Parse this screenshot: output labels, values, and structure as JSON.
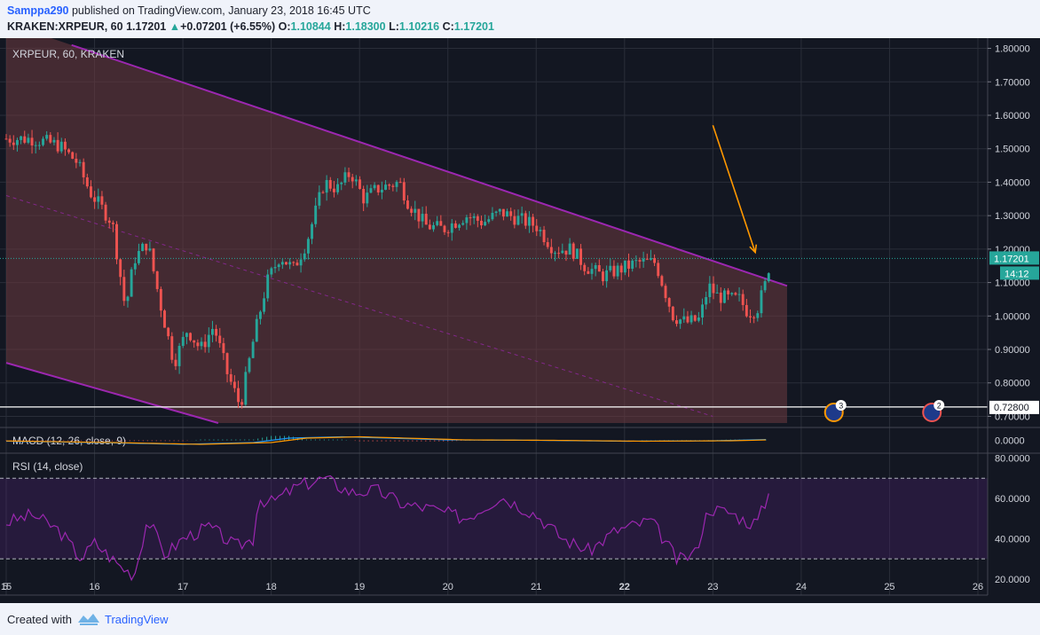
{
  "header": {
    "author": "Samppa290",
    "published_text": " published on TradingView.com, January 23, 2018 16:45 UTC",
    "symbol": "KRAKEN:XRPEUR, 60",
    "last_price": "1.17201",
    "change_arrow": "▲",
    "change": "+0.07201 (+6.55%)",
    "open_label": "O:",
    "open": "1.10844",
    "high_label": "H:",
    "high": "1.18300",
    "low_label": "L:",
    "low": "1.10216",
    "close_label": "C:",
    "close": "1.17201"
  },
  "footer": {
    "created_with": "Created with",
    "brand": "TradingView"
  },
  "colors": {
    "background": "#131722",
    "up_candle": "#26a69a",
    "down_candle": "#ef5350",
    "channel_line": "#9c27b0",
    "channel_fill": "#6d3a3f",
    "arrow": "#ff9800",
    "rsi_line": "#9c27b0",
    "macd_line": "#2196f3",
    "signal_line": "#ff9800"
  },
  "chart_data": [
    {
      "type": "candlestick",
      "title": "XRPEUR, 60, KRAKEN",
      "y_axis_ticks": [
        0.7,
        0.8,
        0.9,
        1.0,
        1.1,
        1.2,
        1.3,
        1.4,
        1.5,
        1.6,
        1.7,
        1.8
      ],
      "y_axis_tick_labels": [
        "0.70000",
        "0.80000",
        "0.90000",
        "1.00000",
        "1.10000",
        "1.20000",
        "1.30000",
        "1.40000",
        "1.50000",
        "1.60000",
        "1.70000",
        "1.80000"
      ],
      "ylim": [
        0.68,
        1.82
      ],
      "x_axis_ticks": [
        "15",
        "16",
        "17",
        "18",
        "19",
        "20",
        "21",
        "22",
        "23",
        "24",
        "25",
        "26"
      ],
      "xlim_days": [
        15,
        26
      ],
      "price_labels": {
        "last_price": "1.17201",
        "countdown": "14:12",
        "horizontal_level": "0.72800"
      },
      "horizontal_level_value": 0.728,
      "last_price_value": 1.17201,
      "channel": {
        "upper": [
          [
            15.74,
            1.81
          ],
          [
            23.84,
            1.09
          ]
        ],
        "lower": [
          [
            15.0,
            0.86
          ],
          [
            17.4,
            0.68
          ]
        ],
        "middle": [
          [
            15.0,
            1.36
          ],
          [
            23.0,
            0.7
          ]
        ]
      },
      "annotation_arrow": {
        "from": [
          23.0,
          1.57
        ],
        "to": [
          23.48,
          1.19
        ]
      },
      "event_markers": [
        {
          "day": 24.37,
          "count": "3",
          "color": "#ff9800"
        },
        {
          "day": 25.48,
          "count": "2",
          "color": "#ef5350"
        }
      ],
      "candles_close_path": [
        [
          15.0,
          1.53
        ],
        [
          15.3,
          1.53
        ],
        [
          15.6,
          1.51
        ],
        [
          15.8,
          1.46
        ],
        [
          15.95,
          1.37
        ],
        [
          16.2,
          1.28
        ],
        [
          16.35,
          1.02
        ],
        [
          16.45,
          1.17
        ],
        [
          16.6,
          1.22
        ],
        [
          16.75,
          1.03
        ],
        [
          16.9,
          0.86
        ],
        [
          17.05,
          0.96
        ],
        [
          17.2,
          0.9
        ],
        [
          17.35,
          0.97
        ],
        [
          17.5,
          0.83
        ],
        [
          17.65,
          0.73
        ],
        [
          17.8,
          0.93
        ],
        [
          17.95,
          1.1
        ],
        [
          18.1,
          1.18
        ],
        [
          18.25,
          1.14
        ],
        [
          18.4,
          1.22
        ],
        [
          18.6,
          1.4
        ],
        [
          18.75,
          1.38
        ],
        [
          18.9,
          1.43
        ],
        [
          19.05,
          1.35
        ],
        [
          19.2,
          1.38
        ],
        [
          19.45,
          1.4
        ],
        [
          19.55,
          1.34
        ],
        [
          19.75,
          1.27
        ],
        [
          19.95,
          1.26
        ],
        [
          20.2,
          1.3
        ],
        [
          20.4,
          1.28
        ],
        [
          20.6,
          1.31
        ],
        [
          20.8,
          1.29
        ],
        [
          21.0,
          1.27
        ],
        [
          21.2,
          1.2
        ],
        [
          21.4,
          1.2
        ],
        [
          21.55,
          1.15
        ],
        [
          21.75,
          1.12
        ],
        [
          21.95,
          1.14
        ],
        [
          22.15,
          1.16
        ],
        [
          22.35,
          1.16
        ],
        [
          22.55,
          1.0
        ],
        [
          22.7,
          0.98
        ],
        [
          22.85,
          0.99
        ],
        [
          22.95,
          1.09
        ],
        [
          23.05,
          1.06
        ],
        [
          23.2,
          1.05
        ],
        [
          23.3,
          1.05
        ],
        [
          23.4,
          1.01
        ],
        [
          23.5,
          1.02
        ],
        [
          23.6,
          1.1
        ],
        [
          23.65,
          1.17
        ]
      ],
      "candle_step_days": 0.0417
    },
    {
      "type": "line",
      "title": "MACD (12, 26, close, 9)",
      "y_axis_tick_labels": [
        "0.0000"
      ],
      "series": [
        {
          "name": "MACD"
        },
        {
          "name": "Signal"
        }
      ],
      "values_path": [
        [
          15.0,
          -0.02
        ],
        [
          16.0,
          -0.05
        ],
        [
          17.0,
          -0.09
        ],
        [
          17.8,
          -0.05
        ],
        [
          18.2,
          0.05
        ],
        [
          18.8,
          0.08
        ],
        [
          19.5,
          0.04
        ],
        [
          20.0,
          0.01
        ],
        [
          21.0,
          0.0
        ],
        [
          22.0,
          -0.02
        ],
        [
          23.0,
          -0.01
        ],
        [
          23.65,
          0.02
        ]
      ]
    },
    {
      "type": "line",
      "title": "RSI (14, close)",
      "y_axis_ticks": [
        20,
        40,
        60,
        80
      ],
      "y_axis_tick_labels": [
        "20.0000",
        "40.0000",
        "60.0000",
        "80.0000"
      ],
      "bands": [
        30,
        70
      ],
      "ylim": [
        12,
        82
      ],
      "values_path": [
        [
          15.0,
          48
        ],
        [
          15.3,
          52
        ],
        [
          15.6,
          44
        ],
        [
          15.85,
          30
        ],
        [
          16.0,
          38
        ],
        [
          16.3,
          26
        ],
        [
          16.45,
          22
        ],
        [
          16.6,
          50
        ],
        [
          16.8,
          32
        ],
        [
          17.0,
          40
        ],
        [
          17.3,
          46
        ],
        [
          17.6,
          36
        ],
        [
          17.8,
          40
        ],
        [
          17.85,
          60
        ],
        [
          18.0,
          58
        ],
        [
          18.3,
          66
        ],
        [
          18.6,
          70
        ],
        [
          18.9,
          63
        ],
        [
          19.2,
          64
        ],
        [
          19.5,
          57
        ],
        [
          19.8,
          55
        ],
        [
          20.2,
          50
        ],
        [
          20.6,
          61
        ],
        [
          21.0,
          52
        ],
        [
          21.3,
          40
        ],
        [
          21.6,
          34
        ],
        [
          21.9,
          44
        ],
        [
          22.3,
          49
        ],
        [
          22.5,
          36
        ],
        [
          22.6,
          29
        ],
        [
          22.8,
          33
        ],
        [
          22.95,
          55
        ],
        [
          23.2,
          53
        ],
        [
          23.4,
          48
        ],
        [
          23.5,
          48
        ],
        [
          23.65,
          64
        ]
      ]
    }
  ]
}
